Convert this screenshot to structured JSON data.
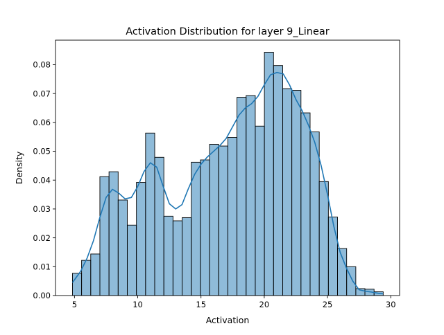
{
  "chart_data": {
    "type": "bar",
    "title": "Activation Distribution for layer 9_Linear",
    "xlabel": "Activation",
    "ylabel": "Density",
    "xlim": [
      3.5,
      30.7
    ],
    "ylim": [
      0,
      0.0885
    ],
    "xticks": [
      5,
      10,
      15,
      20,
      25,
      30
    ],
    "yticks": [
      0.0,
      0.01,
      0.02,
      0.03,
      0.04,
      0.05,
      0.06,
      0.07,
      0.08
    ],
    "ytick_labels": [
      "0.00",
      "0.01",
      "0.02",
      "0.03",
      "0.04",
      "0.05",
      "0.06",
      "0.07",
      "0.08"
    ],
    "bin_start": 4.84,
    "bin_width": 0.7225,
    "densities": [
      0.0077,
      0.0122,
      0.0144,
      0.0412,
      0.0429,
      0.0331,
      0.0244,
      0.0392,
      0.0563,
      0.0479,
      0.0275,
      0.0259,
      0.027,
      0.0462,
      0.047,
      0.0524,
      0.0518,
      0.0548,
      0.0687,
      0.0693,
      0.0587,
      0.0843,
      0.0797,
      0.0717,
      0.0711,
      0.0633,
      0.0567,
      0.0395,
      0.0272,
      0.0163,
      0.01,
      0.0024,
      0.0022,
      0.0013
    ],
    "kde": {
      "x": [
        4.84,
        5.5,
        6.0,
        6.5,
        7.0,
        7.5,
        8.0,
        8.5,
        9.0,
        9.5,
        10.0,
        10.5,
        11.0,
        11.5,
        12.0,
        12.5,
        13.0,
        13.5,
        14.0,
        14.5,
        15.0,
        15.5,
        16.0,
        16.5,
        17.0,
        17.5,
        18.0,
        18.5,
        19.0,
        19.5,
        20.0,
        20.5,
        21.0,
        21.5,
        22.0,
        22.5,
        23.0,
        23.5,
        24.0,
        24.5,
        25.0,
        25.5,
        26.0,
        26.5,
        27.0,
        27.5,
        28.0,
        28.5,
        29.0,
        29.4
      ],
      "y": [
        0.0045,
        0.0085,
        0.013,
        0.019,
        0.027,
        0.034,
        0.0368,
        0.0355,
        0.0335,
        0.034,
        0.0378,
        0.043,
        0.046,
        0.0445,
        0.038,
        0.0318,
        0.03,
        0.0315,
        0.037,
        0.042,
        0.0455,
        0.048,
        0.05,
        0.052,
        0.0545,
        0.0585,
        0.0625,
        0.065,
        0.0665,
        0.069,
        0.073,
        0.0765,
        0.0773,
        0.0768,
        0.073,
        0.068,
        0.064,
        0.059,
        0.053,
        0.045,
        0.035,
        0.024,
        0.015,
        0.0095,
        0.005,
        0.002,
        0.0015,
        0.0012,
        0.0008,
        0.0006
      ]
    },
    "bar_color": "#1f77b4",
    "bar_alpha": 0.5,
    "line_color": "#1f77b4",
    "grid": false
  }
}
